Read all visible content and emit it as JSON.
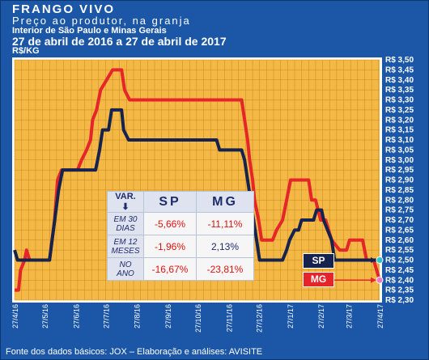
{
  "header": {
    "title": "FRANGO VIVO",
    "subtitle": "Preço ao produtor, na granja",
    "region": "Interior de São Paulo e Minas Gerais",
    "period": "27 de abril de 2016 a 27 de abril de 2017",
    "unit": "R$/KG"
  },
  "footer": {
    "source": "Fonte dos dados básicos: JOX – Elaboração e análises: AVISITE"
  },
  "colors": {
    "frame": "#1b57a6",
    "plot_bg": "#f3b845",
    "sp_line": "#17234f",
    "mg_line": "#e6252a",
    "sp_marker": "#2fc2c9",
    "mg_marker": "#e77ec1"
  },
  "variation_table": {
    "header_label": "VAR.",
    "header_icon": "arrow-down-icon",
    "col_sp": "SP",
    "col_mg": "MG",
    "rows": [
      {
        "label": "EM 30 DIAS",
        "sp": "-5,66%",
        "mg": "-11,11%"
      },
      {
        "label": "EM 12 MESES",
        "sp": "-1,96%",
        "mg": "2,13%"
      },
      {
        "label": "NO ANO",
        "sp": "-16,67%",
        "mg": "-23,81%"
      }
    ]
  },
  "chart_data": {
    "type": "line",
    "title": "FRANGO VIVO",
    "ylabel": "R$/KG",
    "ylim": [
      2.3,
      3.5
    ],
    "y_tick_step": 0.05,
    "grid": true,
    "x_ticks": [
      "27/4/16",
      "27/5/16",
      "27/6/16",
      "27/7/16",
      "27/8/16",
      "27/9/16",
      "27/10/16",
      "27/11/16",
      "27/12/16",
      "27/1/17",
      "27/2/17",
      "27/3/17",
      "27/4/17"
    ],
    "series": [
      {
        "name": "SP",
        "points": [
          [
            "27/4/16",
            2.55
          ],
          [
            "30/4/16",
            2.5
          ],
          [
            "15/5/16",
            2.5
          ],
          [
            "20/5/16",
            2.5
          ],
          [
            "24/5/16",
            2.5
          ],
          [
            "29/5/16",
            2.5
          ],
          [
            "1/6/16",
            2.5
          ],
          [
            "10/6/16",
            2.85
          ],
          [
            "14/6/16",
            2.95
          ],
          [
            "20/6/16",
            2.95
          ],
          [
            "29/6/16",
            2.95
          ],
          [
            "10/7/16",
            2.95
          ],
          [
            "17/7/16",
            2.95
          ],
          [
            "19/7/16",
            3.0
          ],
          [
            "21/7/16",
            3.05
          ],
          [
            "24/7/16",
            3.15
          ],
          [
            "30/7/16",
            3.15
          ],
          [
            "2/8/16",
            3.25
          ],
          [
            "12/8/16",
            3.25
          ],
          [
            "14/8/16",
            3.15
          ],
          [
            "19/8/16",
            3.1
          ],
          [
            "24/8/16",
            3.1
          ],
          [
            "31/8/16",
            3.1
          ],
          [
            "15/9/16",
            3.1
          ],
          [
            "30/9/16",
            3.1
          ],
          [
            "15/10/16",
            3.1
          ],
          [
            "31/10/16",
            3.1
          ],
          [
            "10/11/16",
            3.1
          ],
          [
            "15/11/16",
            3.1
          ],
          [
            "18/11/16",
            3.05
          ],
          [
            "23/11/16",
            3.05
          ],
          [
            "5/12/16",
            3.05
          ],
          [
            "10/12/16",
            3.05
          ],
          [
            "13/12/16",
            3.0
          ],
          [
            "16/12/16",
            2.9
          ],
          [
            "19/12/16",
            2.8
          ],
          [
            "22/12/16",
            2.7
          ],
          [
            "25/12/16",
            2.6
          ],
          [
            "28/12/16",
            2.5
          ],
          [
            "20/1/17",
            2.5
          ],
          [
            "24/1/17",
            2.55
          ],
          [
            "27/1/17",
            2.6
          ],
          [
            "1/2/17",
            2.65
          ],
          [
            "5/2/17",
            2.65
          ],
          [
            "8/2/17",
            2.7
          ],
          [
            "20/2/17",
            2.7
          ],
          [
            "23/2/17",
            2.75
          ],
          [
            "28/2/17",
            2.75
          ],
          [
            "2/3/17",
            2.7
          ],
          [
            "6/3/17",
            2.65
          ],
          [
            "10/3/17",
            2.6
          ],
          [
            "13/3/17",
            2.5
          ],
          [
            "27/3/17",
            2.5
          ],
          [
            "1/4/17",
            2.5
          ],
          [
            "15/4/17",
            2.5
          ],
          [
            "27/4/17",
            2.5
          ]
        ]
      },
      {
        "name": "MG",
        "points": [
          [
            "27/4/16",
            2.35
          ],
          [
            "1/5/16",
            2.35
          ],
          [
            "3/5/16",
            2.45
          ],
          [
            "7/5/16",
            2.5
          ],
          [
            "9/5/16",
            2.55
          ],
          [
            "12/5/16",
            2.5
          ],
          [
            "20/5/16",
            2.5
          ],
          [
            "1/6/16",
            2.5
          ],
          [
            "6/6/16",
            2.7
          ],
          [
            "9/6/16",
            2.9
          ],
          [
            "13/6/16",
            2.95
          ],
          [
            "29/6/16",
            2.95
          ],
          [
            "3/7/16",
            3.0
          ],
          [
            "8/7/16",
            3.05
          ],
          [
            "12/7/16",
            3.1
          ],
          [
            "14/7/16",
            3.2
          ],
          [
            "18/7/16",
            3.25
          ],
          [
            "22/7/16",
            3.35
          ],
          [
            "28/7/16",
            3.4
          ],
          [
            "3/8/16",
            3.45
          ],
          [
            "12/8/16",
            3.45
          ],
          [
            "15/8/16",
            3.35
          ],
          [
            "20/8/16",
            3.3
          ],
          [
            "31/8/16",
            3.3
          ],
          [
            "30/9/16",
            3.3
          ],
          [
            "31/10/16",
            3.3
          ],
          [
            "30/11/16",
            3.3
          ],
          [
            "10/12/16",
            3.3
          ],
          [
            "13/12/16",
            3.2
          ],
          [
            "16/12/16",
            3.1
          ],
          [
            "18/12/16",
            3.0
          ],
          [
            "21/12/16",
            2.9
          ],
          [
            "23/12/16",
            2.8
          ],
          [
            "27/12/16",
            2.7
          ],
          [
            "30/12/16",
            2.6
          ],
          [
            "10/1/17",
            2.6
          ],
          [
            "14/1/17",
            2.65
          ],
          [
            "20/1/17",
            2.7
          ],
          [
            "24/1/17",
            2.8
          ],
          [
            "28/1/17",
            2.9
          ],
          [
            "15/2/17",
            2.9
          ],
          [
            "18/2/17",
            2.8
          ],
          [
            "22/2/17",
            2.8
          ],
          [
            "27/2/17",
            2.7
          ],
          [
            "4/3/17",
            2.7
          ],
          [
            "10/3/17",
            2.6
          ],
          [
            "18/3/17",
            2.55
          ],
          [
            "25/3/17",
            2.55
          ],
          [
            "28/3/17",
            2.6
          ],
          [
            "2/4/17",
            2.6
          ],
          [
            "10/4/17",
            2.6
          ],
          [
            "14/4/17",
            2.5
          ],
          [
            "21/4/17",
            2.5
          ],
          [
            "27/4/17",
            2.4
          ]
        ]
      }
    ],
    "end_labels": [
      {
        "series": "SP",
        "value": 2.5,
        "tag": "SP"
      },
      {
        "series": "MG",
        "value": 2.4,
        "tag": "MG"
      }
    ]
  }
}
